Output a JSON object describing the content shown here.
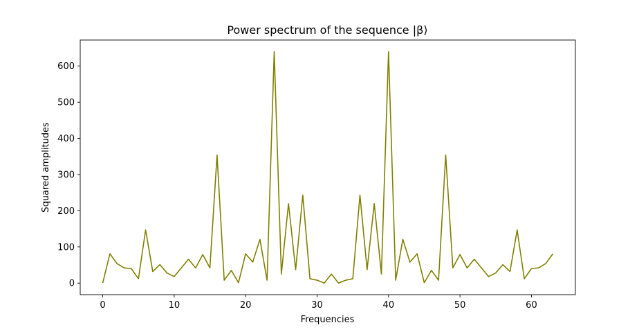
{
  "chart_data": {
    "type": "line",
    "title": "Power spectrum of the sequence |β⟩",
    "xlabel": "Frequencies",
    "ylabel": "Squared amplitudes",
    "xlim": [
      -3.15,
      66.15
    ],
    "ylim": [
      -32,
      672
    ],
    "xticks": [
      0,
      10,
      20,
      30,
      40,
      50,
      60
    ],
    "yticks": [
      0,
      100,
      200,
      300,
      400,
      500,
      600
    ],
    "grid": false,
    "series": [
      {
        "color": "#808000",
        "x": [
          0,
          1,
          2,
          3,
          4,
          5,
          6,
          7,
          8,
          9,
          10,
          11,
          12,
          13,
          14,
          15,
          16,
          17,
          18,
          19,
          20,
          21,
          22,
          23,
          24,
          25,
          26,
          27,
          28,
          29,
          30,
          31,
          32,
          33,
          34,
          35,
          36,
          37,
          38,
          39,
          40,
          41,
          42,
          43,
          44,
          45,
          46,
          47,
          48,
          49,
          50,
          51,
          52,
          53,
          54,
          55,
          56,
          57,
          58,
          59,
          60,
          61,
          62,
          63
        ],
        "values": [
          0,
          81,
          54,
          42,
          40,
          12,
          147,
          32,
          51,
          28,
          18,
          42,
          66,
          42,
          79,
          42,
          354,
          8,
          35,
          1,
          81,
          58,
          121,
          8,
          640,
          25,
          220,
          37,
          243,
          12,
          8,
          0,
          25,
          0,
          8,
          12,
          243,
          37,
          220,
          25,
          640,
          8,
          121,
          58,
          81,
          1,
          35,
          8,
          354,
          42,
          79,
          42,
          66,
          42,
          18,
          28,
          51,
          32,
          147,
          12,
          40,
          42,
          54,
          81
        ]
      }
    ]
  }
}
